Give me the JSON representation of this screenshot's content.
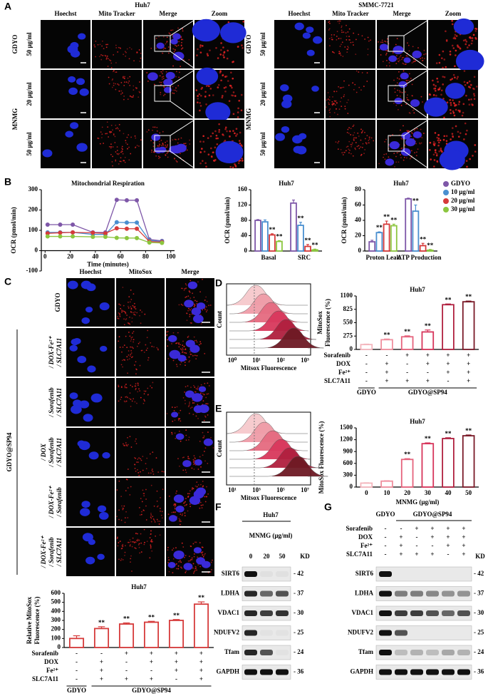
{
  "panel_labels": [
    "A",
    "B",
    "C",
    "D",
    "E",
    "F",
    "G"
  ],
  "panel_a": [
    {
      "cell_line": "Huh7",
      "columns": [
        "Hoechst",
        "Mito Tracker",
        "Merge",
        "Zoom"
      ],
      "rows": [
        {
          "treatment": "GDYO",
          "doses": [
            "50 μg/ml"
          ]
        },
        {
          "treatment": "MNMG",
          "doses": [
            "20 μg/ml",
            "50 μg/ml"
          ]
        }
      ]
    },
    {
      "cell_line": "SMMC-7721",
      "columns": [
        "Hoechst",
        "Mito Tracker",
        "Merge",
        "Zoom"
      ],
      "rows": [
        {
          "treatment": "GDYO",
          "doses": [
            "50 μg/ml"
          ]
        },
        {
          "treatment": "MNMG",
          "doses": [
            "20 μg/ml",
            "50 μg/ml"
          ]
        }
      ]
    }
  ],
  "panel_c": {
    "columns": [
      "Hoechst",
      "MitoSox",
      "Merge"
    ],
    "control": "GDYO",
    "group": "GDYO@SP94",
    "rows": [
      [
        "/ DOX-Fe²⁺",
        "/ SLC7A11"
      ],
      [
        "/ Sorafenib",
        "/ SLC7A11"
      ],
      [
        "/ DOX",
        "/ Sorafenib",
        "/ SLC7A11"
      ],
      [
        "/ DOX-Fe²⁺",
        "/ Sorafenib"
      ],
      [
        "/ DOX-Fe²⁺",
        "/ Sorafenib",
        "/ SLC7A11"
      ]
    ]
  },
  "flow_d": {
    "ylabel": "Count",
    "xlabel": "Mitsox Fluorescence",
    "xticks": [
      "10⁰",
      "10¹",
      "10²",
      "10³"
    ]
  },
  "flow_e": {
    "ylabel": "Count",
    "xlabel": "Mitsox Fluorescence",
    "xticks": [
      "10¹",
      "10³",
      "10⁵",
      "10⁷"
    ]
  },
  "chart_data": [
    {
      "type": "line",
      "title": "Mitochondrial Respiration",
      "xlabel": "Time (minutes)",
      "ylabel": "OCR (pmol/min)",
      "x": [
        2,
        12,
        22,
        38,
        48,
        57,
        65,
        73,
        83,
        93
      ],
      "xlim": [
        -3,
        103
      ],
      "xticks": [
        0,
        20,
        40,
        60,
        80,
        100
      ],
      "ylim": [
        -100,
        300
      ],
      "yticks": [
        -100,
        0,
        100,
        200,
        300
      ],
      "series": [
        {
          "name": "GDYO",
          "color": "#7e57a8",
          "values": [
            128,
            128,
            128,
            90,
            90,
            250,
            248,
            248,
            55,
            48
          ]
        },
        {
          "name": "10 μg/ml",
          "color": "#4a8fd0",
          "values": [
            90,
            90,
            90,
            80,
            80,
            140,
            138,
            138,
            50,
            45
          ]
        },
        {
          "name": "20 μg/ml",
          "color": "#d63a3a",
          "values": [
            85,
            88,
            90,
            88,
            85,
            110,
            108,
            108,
            45,
            42
          ]
        },
        {
          "name": "30 μg/ml",
          "color": "#8cc63f",
          "values": [
            70,
            70,
            70,
            68,
            68,
            63,
            62,
            62,
            40,
            38
          ]
        }
      ]
    },
    {
      "type": "bar",
      "title": "Huh7",
      "ylabel": "OCR (pmol/min)",
      "categories": [
        "Basal",
        "SRC"
      ],
      "ylim": [
        0,
        160
      ],
      "yticks": [
        0,
        40,
        80,
        120,
        160
      ],
      "series": [
        {
          "color": "#7e57a8",
          "values": [
            80,
            125
          ],
          "errors": [
            2,
            8
          ],
          "significance": [
            null,
            null
          ]
        },
        {
          "color": "#4a8fd0",
          "values": [
            76,
            67
          ],
          "errors": [
            5,
            8
          ],
          "significance": [
            null,
            "**"
          ]
        },
        {
          "color": "#d63a3a",
          "values": [
            42,
            12
          ],
          "errors": [
            3,
            5
          ],
          "significance": [
            "**",
            "**"
          ]
        },
        {
          "color": "#8cc63f",
          "values": [
            25,
            3
          ],
          "errors": [
            2,
            2
          ],
          "significance": [
            "**",
            "**"
          ]
        }
      ]
    },
    {
      "type": "bar",
      "title": "Huh7",
      "ylabel": "OCR (pmol/min)",
      "categories": [
        "Proton Leak",
        "ATP Production"
      ],
      "ylim": [
        0,
        80
      ],
      "yticks": [
        0,
        20,
        40,
        60,
        80
      ],
      "series": [
        {
          "color": "#7e57a8",
          "values": [
            12,
            68
          ],
          "errors": [
            2,
            1
          ],
          "significance": [
            null,
            null
          ]
        },
        {
          "color": "#4a8fd0",
          "values": [
            24,
            52
          ],
          "errors": [
            1,
            8
          ],
          "significance": [
            "**",
            "**"
          ]
        },
        {
          "color": "#d63a3a",
          "values": [
            35,
            7
          ],
          "errors": [
            4,
            3
          ],
          "significance": [
            "**",
            "**"
          ]
        },
        {
          "color": "#8cc63f",
          "values": [
            33,
            1
          ],
          "errors": [
            2,
            1
          ],
          "significance": [
            "**",
            "**"
          ]
        }
      ]
    },
    {
      "type": "bar",
      "title": "Huh7",
      "ylabel": [
        "Relative MitoSox",
        "Fluorescence (%)"
      ],
      "ylim": [
        0,
        600
      ],
      "yticks": [
        0,
        100,
        200,
        300,
        400,
        500,
        600
      ],
      "values": [
        100,
        210,
        260,
        280,
        300,
        480
      ],
      "errors": [
        30,
        20,
        12,
        10,
        10,
        25
      ],
      "significance": [
        null,
        "**",
        "**",
        "**",
        "**",
        "**"
      ],
      "color": "#d63a3a",
      "conditions": [
        {
          "name": "Sorafenib",
          "signs": [
            "-",
            "-",
            "+",
            "+",
            "+",
            "+"
          ]
        },
        {
          "name": "DOX",
          "signs": [
            "-",
            "+",
            "-",
            "+",
            "+",
            "+"
          ]
        },
        {
          "name": "Fe²⁺",
          "signs": [
            "-",
            "+",
            "-",
            "-",
            "+",
            "+"
          ]
        },
        {
          "name": "SLC7A11",
          "signs": [
            "-",
            "+",
            "+",
            "+",
            "-",
            "+"
          ]
        }
      ],
      "groups": [
        "GDYO",
        "GDYO@SP94"
      ]
    },
    {
      "type": "bar",
      "title": "Huh7",
      "ylabel": [
        "MitoSox",
        "Fluorescence (%)"
      ],
      "ylim": [
        0,
        1100
      ],
      "yticks": [
        0,
        275,
        550,
        825,
        1100
      ],
      "values": [
        100,
        200,
        260,
        360,
        920,
        980
      ],
      "errors": [
        10,
        15,
        20,
        40,
        15,
        15
      ],
      "significance": [
        null,
        "**",
        "**",
        "**",
        "**",
        "**"
      ],
      "colors": [
        "#f4b6bd",
        "#f08f9e",
        "#e5637c",
        "#d7355b",
        "#b0203f",
        "#7a1a28"
      ],
      "conditions": [
        {
          "name": "Sorafenib",
          "signs": [
            "-",
            "-",
            "+",
            "+",
            "+",
            "+"
          ]
        },
        {
          "name": "DOX",
          "signs": [
            "-",
            "+",
            "-",
            "+",
            "+",
            "+"
          ]
        },
        {
          "name": "Fe²⁺",
          "signs": [
            "-",
            "+",
            "-",
            "-",
            "+",
            "+"
          ]
        },
        {
          "name": "SLC7A11",
          "signs": [
            "-",
            "+",
            "+",
            "+",
            "-",
            "+"
          ]
        }
      ],
      "groups": [
        "GDYO",
        "GDYO@SP94"
      ]
    },
    {
      "type": "bar",
      "title": "Huh7",
      "ylabel": "MitoSox Fluorescence (%)",
      "xlabel": "MNMG (μg/ml)",
      "categories": [
        "0",
        "10",
        "20",
        "30",
        "40",
        "50"
      ],
      "ylim": [
        0,
        1500
      ],
      "yticks": [
        0,
        300,
        600,
        900,
        1200,
        1500
      ],
      "values": [
        100,
        150,
        700,
        1100,
        1230,
        1300
      ],
      "errors": [
        10,
        10,
        20,
        20,
        20,
        20
      ],
      "significance": [
        null,
        null,
        "**",
        "**",
        "**",
        "**"
      ],
      "colors": [
        "#f4b6bd",
        "#f08f9e",
        "#e5637c",
        "#d7355b",
        "#b0203f",
        "#7a1a28"
      ]
    }
  ],
  "blot_f": {
    "title": "Huh7",
    "axis_label": "MNMG (μg/ml)",
    "lanes": [
      "0",
      "20",
      "50"
    ],
    "kd_header": "KD",
    "proteins": [
      {
        "name": "SIRT6",
        "kd": "- 42"
      },
      {
        "name": "LDHA",
        "kd": "- 37"
      },
      {
        "name": "VDAC1",
        "kd": "- 30"
      },
      {
        "name": "NDUFV2",
        "kd": "- 25"
      },
      {
        "name": "Tfam",
        "kd": "- 24"
      },
      {
        "name": "GAPDH",
        "kd": "- 36"
      }
    ]
  },
  "blot_g": {
    "groups": [
      "GDYO",
      "GDYO@SP94"
    ],
    "kd_header": "KD",
    "conditions": [
      {
        "name": "Sorafenib",
        "signs": [
          "-",
          "-",
          "+",
          "+",
          "+",
          "+"
        ]
      },
      {
        "name": "DOX",
        "signs": [
          "-",
          "+",
          "-",
          "+",
          "+",
          "+"
        ]
      },
      {
        "name": "Fe²⁺",
        "signs": [
          "-",
          "+",
          "-",
          "-",
          "+",
          "+"
        ]
      },
      {
        "name": "SLC7A11",
        "signs": [
          "-",
          "+",
          "+",
          "+",
          "-",
          "+"
        ]
      }
    ],
    "proteins": [
      {
        "name": "SIRT6",
        "kd": "- 42"
      },
      {
        "name": "LDHA",
        "kd": "- 37"
      },
      {
        "name": "VDAC1",
        "kd": "- 30"
      },
      {
        "name": "NDUFV2",
        "kd": "- 25"
      },
      {
        "name": "Tfam",
        "kd": "- 24"
      },
      {
        "name": "GAPDH",
        "kd": "- 36"
      }
    ]
  }
}
